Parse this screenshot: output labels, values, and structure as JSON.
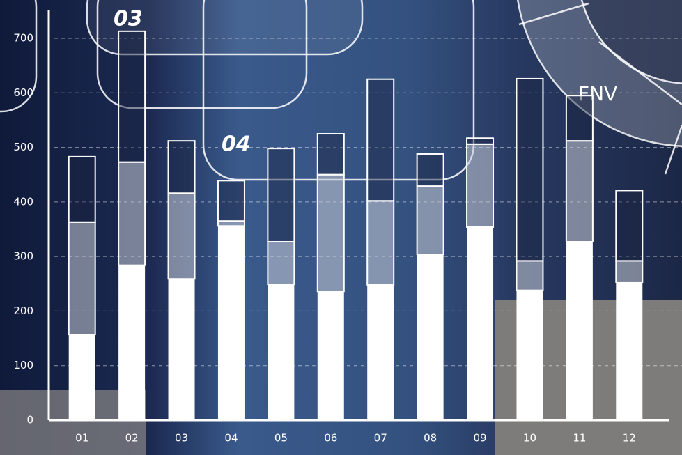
{
  "chart_data": {
    "type": "stacked_bar",
    "categories": [
      "01",
      "02",
      "03",
      "04",
      "05",
      "06",
      "07",
      "08",
      "09",
      "10",
      "11",
      "12"
    ],
    "series": [
      {
        "color": "#ffffff",
        "values": [
          157,
          284,
          259,
          356,
          249,
          236,
          248,
          304,
          354,
          238,
          327,
          253
        ]
      },
      {
        "color": "#c8ccd6",
        "values": [
          206,
          189,
          157,
          9,
          78,
          214,
          154,
          125,
          152,
          54,
          185,
          39
        ]
      },
      {
        "color": "#1a2440",
        "values": [
          120,
          240,
          96,
          74,
          171,
          75,
          223,
          59,
          11,
          334,
          83,
          129
        ]
      }
    ],
    "ylim": [
      0,
      700
    ],
    "yticks": [
      0,
      100,
      200,
      300,
      400,
      500,
      600,
      700
    ],
    "grid": true,
    "annotations": [
      "03",
      "04",
      "FNV"
    ]
  }
}
